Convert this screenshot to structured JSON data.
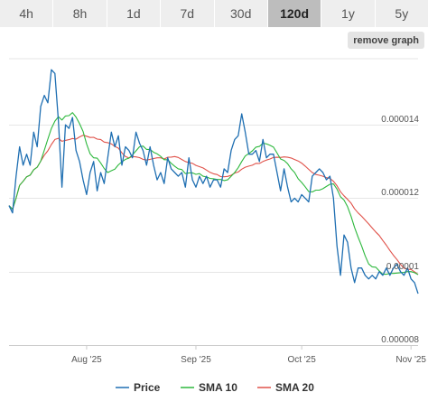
{
  "ranges": [
    "4h",
    "8h",
    "1d",
    "7d",
    "30d",
    "120d",
    "1y",
    "5y"
  ],
  "active_range": "120d",
  "remove_button": "remove graph",
  "colors": {
    "price": "#1f6fb2",
    "sma10": "#2db83d",
    "sma20": "#e0524a",
    "grid": "#e6e6e6"
  },
  "chart_data": {
    "type": "line",
    "title": "",
    "xlabel": "",
    "ylabel": "",
    "ylim": [
      8e-06,
      1.58e-05
    ],
    "xlim": [
      0,
      116
    ],
    "y_ticks": [
      {
        "value": 8e-06,
        "label": "0.000008"
      },
      {
        "value": 1e-05,
        "label": "0.00001"
      },
      {
        "value": 1.2e-05,
        "label": "0.000012"
      },
      {
        "value": 1.4e-05,
        "label": "0.000014"
      }
    ],
    "x_ticks": [
      {
        "value": 22,
        "label": "Aug '25"
      },
      {
        "value": 53,
        "label": "Sep '25"
      },
      {
        "value": 83,
        "label": "Oct '25"
      },
      {
        "value": 114,
        "label": "Nov '25"
      }
    ],
    "legend": {
      "position": "bottom"
    },
    "series": [
      {
        "name": "Price",
        "key": "price",
        "values": [
          1.18e-05,
          1.16e-05,
          1.26e-05,
          1.34e-05,
          1.29e-05,
          1.32e-05,
          1.29e-05,
          1.38e-05,
          1.34e-05,
          1.45e-05,
          1.48e-05,
          1.46e-05,
          1.55e-05,
          1.54e-05,
          1.41e-05,
          1.23e-05,
          1.4e-05,
          1.39e-05,
          1.42e-05,
          1.33e-05,
          1.3e-05,
          1.25e-05,
          1.21e-05,
          1.27e-05,
          1.3e-05,
          1.22e-05,
          1.27e-05,
          1.24e-05,
          1.31e-05,
          1.38e-05,
          1.34e-05,
          1.37e-05,
          1.29e-05,
          1.34e-05,
          1.33e-05,
          1.31e-05,
          1.38e-05,
          1.35e-05,
          1.33e-05,
          1.29e-05,
          1.34e-05,
          1.29e-05,
          1.25e-05,
          1.27e-05,
          1.24e-05,
          1.31e-05,
          1.28e-05,
          1.27e-05,
          1.26e-05,
          1.27e-05,
          1.23e-05,
          1.31e-05,
          1.25e-05,
          1.23e-05,
          1.26e-05,
          1.24e-05,
          1.26e-05,
          1.23e-05,
          1.25e-05,
          1.25e-05,
          1.23e-05,
          1.28e-05,
          1.27e-05,
          1.33e-05,
          1.36e-05,
          1.37e-05,
          1.43e-05,
          1.38e-05,
          1.32e-05,
          1.32e-05,
          1.33e-05,
          1.3e-05,
          1.36e-05,
          1.31e-05,
          1.32e-05,
          1.32e-05,
          1.27e-05,
          1.22e-05,
          1.28e-05,
          1.23e-05,
          1.19e-05,
          1.2e-05,
          1.19e-05,
          1.21e-05,
          1.2e-05,
          1.19e-05,
          1.26e-05,
          1.27e-05,
          1.28e-05,
          1.27e-05,
          1.25e-05,
          1.26e-05,
          1.2e-05,
          1.07e-05,
          9.9e-06,
          1.1e-05,
          1.08e-05,
          1.01e-05,
          9.7e-06,
          1.01e-05,
          1.01e-05,
          9.9e-06,
          9.8e-06,
          9.9e-06,
          9.8e-06,
          1e-05,
          9.9e-06,
          1.01e-05,
          9.9e-06,
          1.01e-05,
          1.02e-05,
          1e-05,
          9.9e-06,
          1.01e-05,
          9.8e-06,
          9.7e-06,
          9.4e-06
        ]
      },
      {
        "name": "SMA 10",
        "key": "sma10"
      },
      {
        "name": "SMA 20",
        "key": "sma20"
      }
    ]
  }
}
